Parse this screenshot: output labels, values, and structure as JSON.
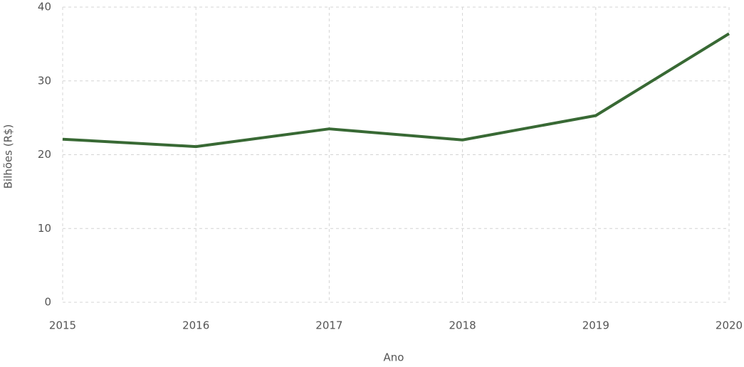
{
  "chart_data": {
    "type": "line",
    "x_label": "Ano",
    "y_label": "Bilhões (R$)",
    "x": [
      2015,
      2016,
      2017,
      2018,
      2019,
      2020
    ],
    "values": [
      22.1,
      21.1,
      23.5,
      22.0,
      25.3,
      36.4
    ],
    "color": "#386934",
    "xlim": [
      2015,
      2020
    ],
    "xticks": [
      2015,
      2016,
      2017,
      2018,
      2019,
      2020
    ],
    "ylim": [
      0,
      40
    ],
    "yticks": [
      0,
      10,
      20,
      30,
      40
    ],
    "grid": true
  }
}
